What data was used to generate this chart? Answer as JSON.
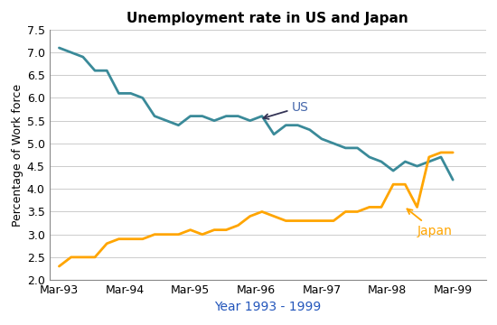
{
  "title": "Unemployment rate in US and Japan",
  "xlabel": "Year 1993 - 1999",
  "ylabel": "Percentage of Work force",
  "ylim": [
    2.0,
    7.5
  ],
  "yticks": [
    2.0,
    2.5,
    3.0,
    3.5,
    4.0,
    4.5,
    5.0,
    5.5,
    6.0,
    6.5,
    7.0,
    7.5
  ],
  "xtick_labels": [
    "Mar-93",
    "Mar-94",
    "Mar-95",
    "Mar-96",
    "Mar-97",
    "Mar-98",
    "Mar-99"
  ],
  "us_color": "#3a8a99",
  "japan_color": "#FFA500",
  "us_label_color": "#4466AA",
  "xlabel_color": "#2255BB",
  "us_data": [
    7.1,
    7.0,
    6.9,
    6.6,
    6.6,
    6.1,
    6.1,
    6.0,
    5.6,
    5.5,
    5.4,
    5.6,
    5.6,
    5.5,
    5.6,
    5.6,
    5.5,
    5.6,
    5.2,
    5.4,
    5.4,
    5.3,
    5.1,
    5.0,
    4.9,
    4.9,
    4.7,
    4.6,
    4.4,
    4.6,
    4.5,
    4.6,
    4.7,
    4.2
  ],
  "japan_data": [
    2.3,
    2.5,
    2.5,
    2.5,
    2.8,
    2.9,
    2.9,
    2.9,
    3.0,
    3.0,
    3.0,
    3.1,
    3.0,
    3.1,
    3.1,
    3.2,
    3.4,
    3.5,
    3.4,
    3.3,
    3.3,
    3.3,
    3.3,
    3.3,
    3.5,
    3.5,
    3.6,
    3.6,
    4.1,
    4.1,
    3.6,
    4.7,
    4.8,
    4.8
  ]
}
